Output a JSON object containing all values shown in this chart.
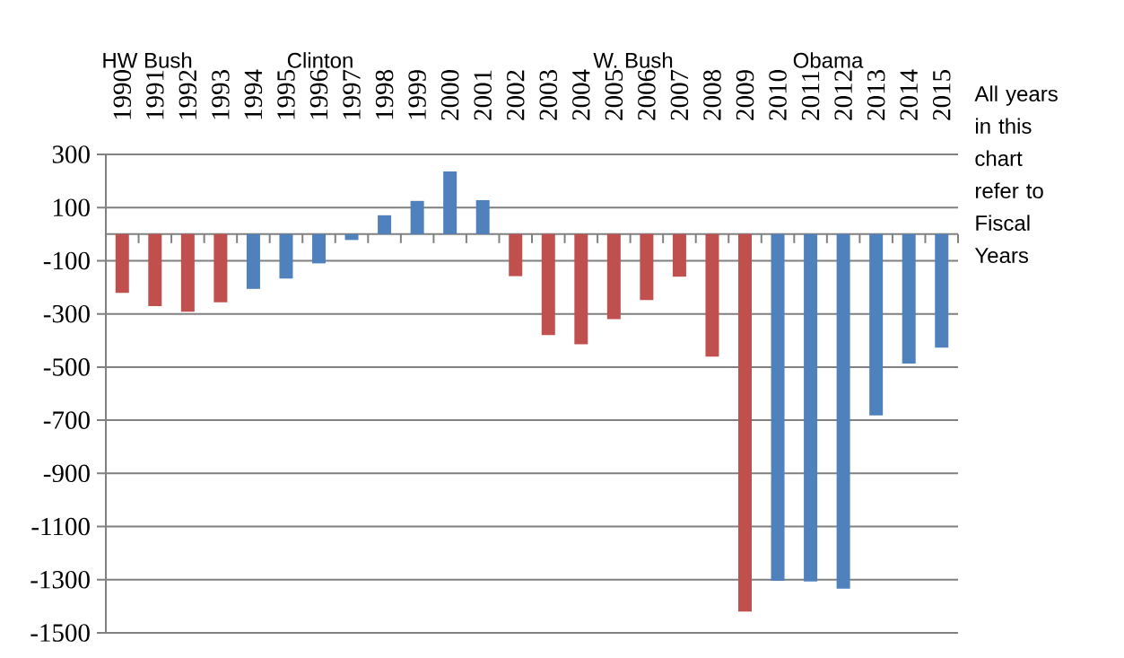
{
  "chart_data": {
    "type": "bar",
    "categories": [
      "1990",
      "1991",
      "1992",
      "1993",
      "1994",
      "1995",
      "1996",
      "1997",
      "1998",
      "1999",
      "2000",
      "2001",
      "2002",
      "2003",
      "2004",
      "2005",
      "2006",
      "2007",
      "2008",
      "2009",
      "2010",
      "2011",
      "2012",
      "2013",
      "2014",
      "2015"
    ],
    "values": [
      -221,
      -271,
      -292,
      -256,
      -206,
      -167,
      -110,
      -22,
      71,
      125,
      236,
      128,
      -158,
      -380,
      -414,
      -320,
      -248,
      -160,
      -461,
      -1420,
      -1304,
      -1307,
      -1334,
      -682,
      -487,
      -427
    ],
    "colors": [
      "#c0504d",
      "#c0504d",
      "#c0504d",
      "#c0504d",
      "#4f81bd",
      "#4f81bd",
      "#4f81bd",
      "#4f81bd",
      "#4f81bd",
      "#4f81bd",
      "#4f81bd",
      "#4f81bd",
      "#c0504d",
      "#c0504d",
      "#c0504d",
      "#c0504d",
      "#c0504d",
      "#c0504d",
      "#c0504d",
      "#c0504d",
      "#4f81bd",
      "#4f81bd",
      "#4f81bd",
      "#4f81bd",
      "#4f81bd",
      "#4f81bd"
    ],
    "ylim": [
      -1500,
      300
    ],
    "yticks": [
      -1500,
      -1300,
      -1100,
      -900,
      -700,
      -500,
      -300,
      -100,
      100,
      300
    ],
    "grid": "y",
    "annotations": [
      "HW Bush",
      "Clinton",
      "W. Bush",
      "Obama",
      "All years in this chart refer to Fiscal Years"
    ]
  }
}
